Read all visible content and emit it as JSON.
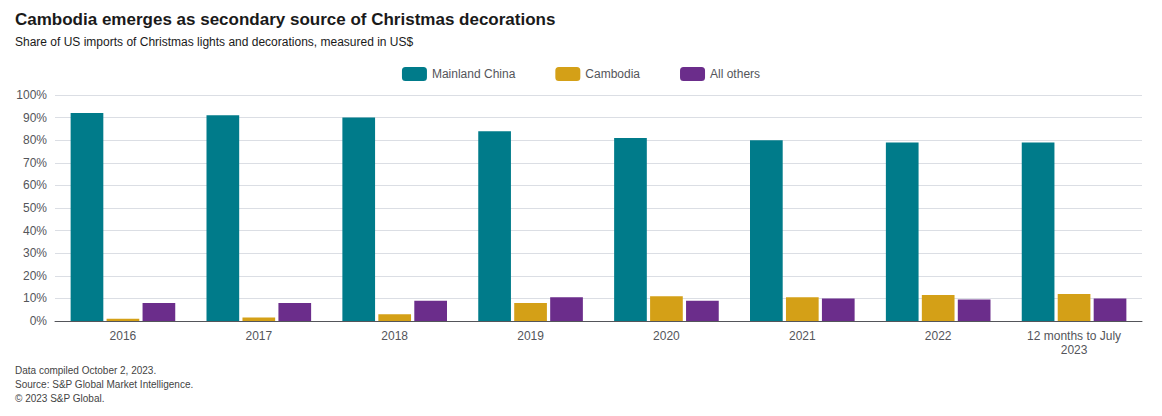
{
  "chart_data": {
    "type": "bar",
    "title": "Cambodia emerges as secondary source of Christmas decorations",
    "subtitle": "Share of US imports of Christmas lights and decorations, measured in US$",
    "footnote": "Data compiled October 2, 2023.\nSource: S&P Global Market Intelligence.\n© 2023 S&P Global.",
    "categories": [
      "2016",
      "2017",
      "2018",
      "2019",
      "2020",
      "2021",
      "2022",
      "12 months to July\n2023"
    ],
    "series": [
      {
        "name": "Mainland China",
        "color": "#007b8a",
        "values": [
          92,
          91,
          90,
          84,
          81,
          80,
          79,
          79
        ]
      },
      {
        "name": "Cambodia",
        "color": "#d4a017",
        "values": [
          1,
          1.5,
          3,
          8,
          11,
          10.5,
          11.5,
          12
        ]
      },
      {
        "name": "All others",
        "color": "#6b2d8b",
        "values": [
          8,
          8,
          9,
          10.5,
          9,
          10,
          9.5,
          10
        ]
      }
    ],
    "ylim": [
      0,
      100
    ],
    "yticks": [
      {
        "value": 0,
        "label": "0%"
      },
      {
        "value": 10,
        "label": "10%"
      },
      {
        "value": 20,
        "label": "20%"
      },
      {
        "value": 30,
        "label": "30%"
      },
      {
        "value": 40,
        "label": "40%"
      },
      {
        "value": 50,
        "label": "50%"
      },
      {
        "value": 60,
        "label": "60%"
      },
      {
        "value": 70,
        "label": "70%"
      },
      {
        "value": 80,
        "label": "80%"
      },
      {
        "value": 90,
        "label": "90%"
      },
      {
        "value": 100,
        "label": "100%"
      }
    ],
    "grid": true,
    "legend": "top"
  }
}
